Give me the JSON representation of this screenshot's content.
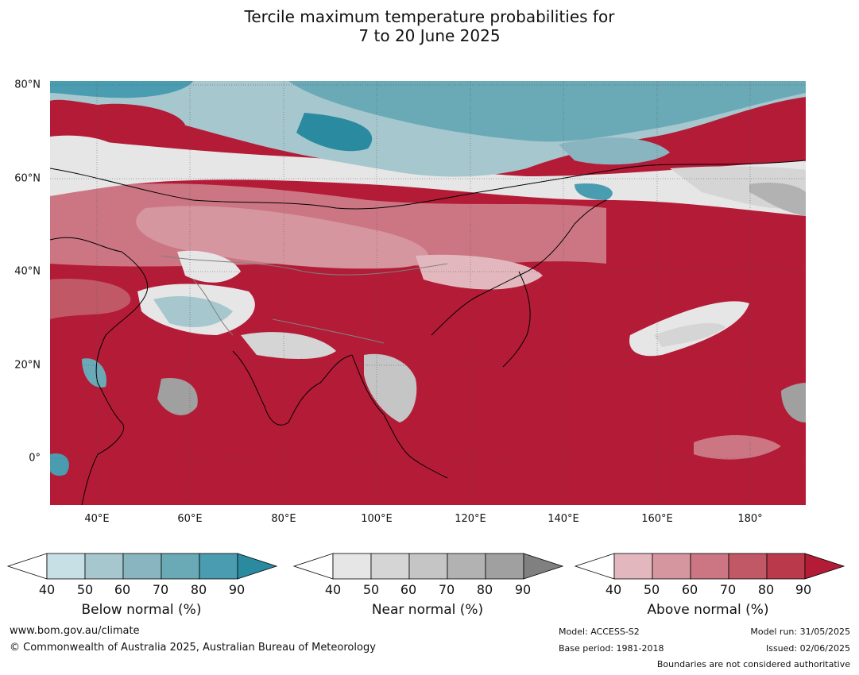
{
  "title": {
    "line1": "Tercile maximum temperature probabilities for",
    "line2": "7 to 20 June 2025"
  },
  "map": {
    "lat_labels": [
      "80°N",
      "60°N",
      "40°N",
      "20°N",
      "0°"
    ],
    "lon_labels": [
      "40°E",
      "60°E",
      "80°E",
      "100°E",
      "120°E",
      "140°E",
      "160°E",
      "180°"
    ],
    "colors": {
      "ocean_above": "#b41b37",
      "coastline": "#000000",
      "borders": "#808080"
    }
  },
  "colorbars": [
    {
      "title": "Below normal (%)",
      "ticks": [
        "40",
        "50",
        "60",
        "70",
        "80",
        "90"
      ],
      "colors": [
        "#ffffff",
        "#c7e0e6",
        "#a6c7cd",
        "#89b5c0",
        "#6aaab7",
        "#4a9db0",
        "#2a8aa0"
      ]
    },
    {
      "title": "Near normal (%)",
      "ticks": [
        "40",
        "50",
        "60",
        "70",
        "80",
        "90"
      ],
      "colors": [
        "#ffffff",
        "#e6e6e6",
        "#d5d5d5",
        "#c5c5c5",
        "#b2b2b2",
        "#a0a0a0",
        "#808080"
      ]
    },
    {
      "title": "Above normal (%)",
      "ticks": [
        "40",
        "50",
        "60",
        "70",
        "80",
        "90"
      ],
      "colors": [
        "#ffffff",
        "#e2b8be",
        "#d6969f",
        "#cb7682",
        "#c15866",
        "#ba3a4c",
        "#b41b37"
      ]
    }
  ],
  "footer": {
    "website": "www.bom.gov.au/climate",
    "copyright": "© Commonwealth of Australia 2025, Australian Bureau of Meteorology",
    "model": "Model: ACCESS-S2",
    "base_period": "Base period: 1981-2018",
    "model_run": "Model run: 31/05/2025",
    "issued": "Issued: 02/06/2025",
    "boundaries": "Boundaries are not considered authoritative"
  }
}
